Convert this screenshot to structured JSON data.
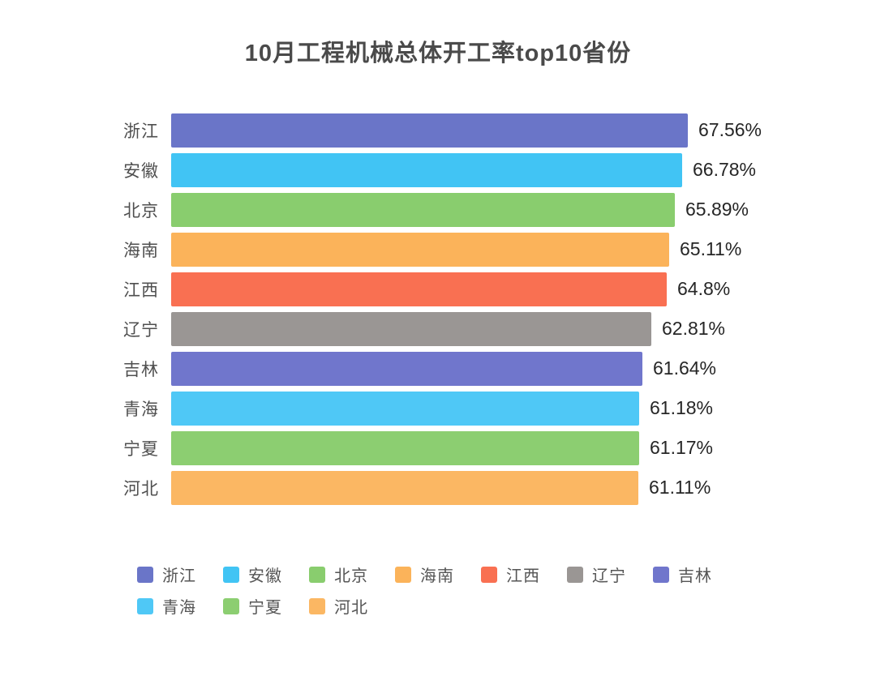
{
  "chart_data": {
    "type": "bar",
    "orientation": "horizontal",
    "title": "10月工程机械总体开工率top10省份",
    "categories": [
      "浙江",
      "安徽",
      "北京",
      "海南",
      "江西",
      "辽宁",
      "吉林",
      "青海",
      "宁夏",
      "河北"
    ],
    "values": [
      67.56,
      66.78,
      65.89,
      65.11,
      64.8,
      62.81,
      61.64,
      61.18,
      61.17,
      61.11
    ],
    "value_labels": [
      "67.56%",
      "66.78%",
      "65.89%",
      "65.11%",
      "64.8%",
      "62.81%",
      "61.64%",
      "61.18%",
      "61.17%",
      "61.11%"
    ],
    "colors": [
      "#6A75C8",
      "#41C4F4",
      "#89CD6E",
      "#FBB35A",
      "#F97052",
      "#9A9694",
      "#7076CC",
      "#4FC8F6",
      "#8CCE71",
      "#FBB763"
    ],
    "xlim": [
      0,
      70
    ],
    "xlabel": "",
    "ylabel": "",
    "grid": false,
    "legend": {
      "position": "bottom",
      "items": [
        {
          "label": "浙江",
          "color": "#6A75C8"
        },
        {
          "label": "安徽",
          "color": "#41C4F4"
        },
        {
          "label": "北京",
          "color": "#89CD6E"
        },
        {
          "label": "海南",
          "color": "#FBB35A"
        },
        {
          "label": "江西",
          "color": "#F97052"
        },
        {
          "label": "辽宁",
          "color": "#9A9694"
        },
        {
          "label": "吉林",
          "color": "#7076CC"
        },
        {
          "label": "青海",
          "color": "#4FC8F6"
        },
        {
          "label": "宁夏",
          "color": "#8CCE71"
        },
        {
          "label": "河北",
          "color": "#FBB763"
        }
      ]
    }
  }
}
